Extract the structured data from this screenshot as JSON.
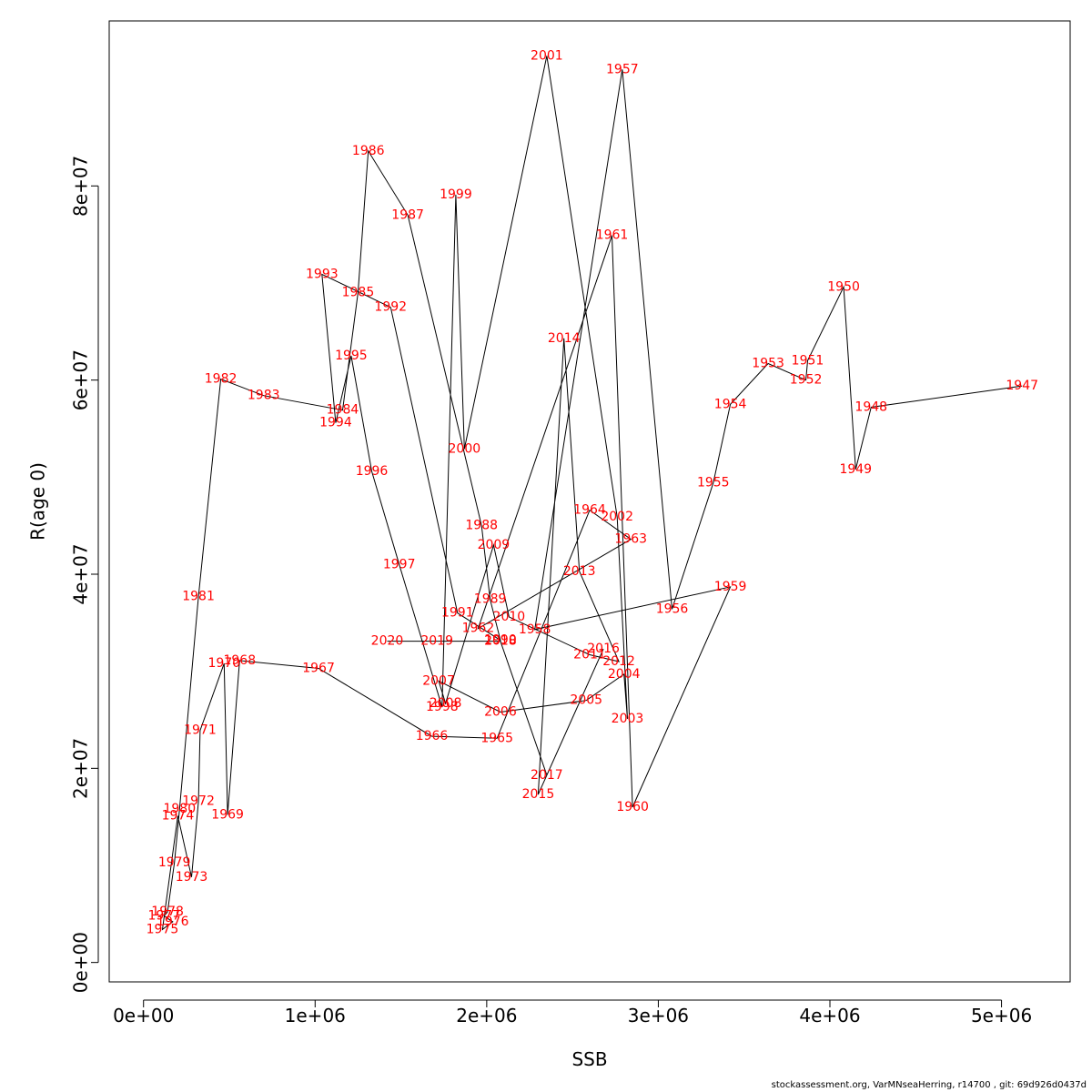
{
  "chart_data": {
    "type": "line",
    "xlabel": "SSB",
    "ylabel": "R(age 0)",
    "xlim": [
      -200000,
      5400000
    ],
    "ylim": [
      -2000000,
      97000000
    ],
    "x_ticks": [
      0,
      1000000,
      2000000,
      3000000,
      4000000,
      5000000
    ],
    "x_tick_labels": [
      "0e+00",
      "1e+06",
      "2e+06",
      "3e+06",
      "4e+06",
      "5e+06"
    ],
    "y_ticks": [
      0,
      20000000,
      40000000,
      60000000,
      80000000
    ],
    "y_tick_labels": [
      "0e+00",
      "2e+07",
      "4e+07",
      "6e+07",
      "8e+07"
    ],
    "line_color": "#000000",
    "label_color": "#ff0000",
    "points": [
      {
        "year": "1947",
        "ssb": 5120000,
        "r": 59400000
      },
      {
        "year": "1948",
        "ssb": 4240000,
        "r": 57200000
      },
      {
        "year": "1949",
        "ssb": 4150000,
        "r": 50800000
      },
      {
        "year": "1950",
        "ssb": 4080000,
        "r": 69600000
      },
      {
        "year": "1951",
        "ssb": 3870000,
        "r": 62000000
      },
      {
        "year": "1952",
        "ssb": 3860000,
        "r": 60000000
      },
      {
        "year": "1953",
        "ssb": 3640000,
        "r": 61700000
      },
      {
        "year": "1954",
        "ssb": 3420000,
        "r": 57500000
      },
      {
        "year": "1955",
        "ssb": 3320000,
        "r": 49400000
      },
      {
        "year": "1956",
        "ssb": 3080000,
        "r": 36400000
      },
      {
        "year": "1957",
        "ssb": 2790000,
        "r": 92000000
      },
      {
        "year": "1958",
        "ssb": 2280000,
        "r": 34300000
      },
      {
        "year": "1959",
        "ssb": 3420000,
        "r": 38700000
      },
      {
        "year": "1960",
        "ssb": 2850000,
        "r": 16000000
      },
      {
        "year": "1961",
        "ssb": 2730000,
        "r": 74900000
      },
      {
        "year": "1962",
        "ssb": 1950000,
        "r": 34400000
      },
      {
        "year": "1963",
        "ssb": 2840000,
        "r": 43600000
      },
      {
        "year": "1964",
        "ssb": 2600000,
        "r": 46600000
      },
      {
        "year": "1965",
        "ssb": 2060000,
        "r": 23100000
      },
      {
        "year": "1966",
        "ssb": 1680000,
        "r": 23300000
      },
      {
        "year": "1967",
        "ssb": 1020000,
        "r": 30300000
      },
      {
        "year": "1968",
        "ssb": 560000,
        "r": 31100000
      },
      {
        "year": "1969",
        "ssb": 490000,
        "r": 15200000
      },
      {
        "year": "1970",
        "ssb": 470000,
        "r": 30800000
      },
      {
        "year": "1971",
        "ssb": 330000,
        "r": 23900000
      },
      {
        "year": "1972",
        "ssb": 320000,
        "r": 16600000
      },
      {
        "year": "1973",
        "ssb": 280000,
        "r": 8800000
      },
      {
        "year": "1974",
        "ssb": 200000,
        "r": 15100000
      },
      {
        "year": "1975",
        "ssb": 110000,
        "r": 3400000
      },
      {
        "year": "1976",
        "ssb": 170000,
        "r": 4200000
      },
      {
        "year": "1977",
        "ssb": 120000,
        "r": 4800000
      },
      {
        "year": "1978",
        "ssb": 140000,
        "r": 5200000
      },
      {
        "year": "1979",
        "ssb": 180000,
        "r": 10300000
      },
      {
        "year": "1980",
        "ssb": 210000,
        "r": 15800000
      },
      {
        "year": "1981",
        "ssb": 320000,
        "r": 37700000
      },
      {
        "year": "1982",
        "ssb": 450000,
        "r": 60100000
      },
      {
        "year": "1983",
        "ssb": 700000,
        "r": 58400000
      },
      {
        "year": "1984",
        "ssb": 1160000,
        "r": 56900000
      },
      {
        "year": "1985",
        "ssb": 1250000,
        "r": 69000000
      },
      {
        "year": "1986",
        "ssb": 1310000,
        "r": 83600000
      },
      {
        "year": "1987",
        "ssb": 1540000,
        "r": 77000000
      },
      {
        "year": "1988",
        "ssb": 1970000,
        "r": 45000000
      },
      {
        "year": "1989",
        "ssb": 2020000,
        "r": 37400000
      },
      {
        "year": "1990",
        "ssb": 2080000,
        "r": 33200000
      },
      {
        "year": "1991",
        "ssb": 1830000,
        "r": 36000000
      },
      {
        "year": "1992",
        "ssb": 1440000,
        "r": 67500000
      },
      {
        "year": "1993",
        "ssb": 1040000,
        "r": 70900000
      },
      {
        "year": "1994",
        "ssb": 1120000,
        "r": 55600000
      },
      {
        "year": "1995",
        "ssb": 1210000,
        "r": 62500000
      },
      {
        "year": "1996",
        "ssb": 1330000,
        "r": 50600000
      },
      {
        "year": "1997",
        "ssb": 1490000,
        "r": 41000000
      },
      {
        "year": "1998",
        "ssb": 1740000,
        "r": 26300000
      },
      {
        "year": "1999",
        "ssb": 1820000,
        "r": 79100000
      },
      {
        "year": "2000",
        "ssb": 1870000,
        "r": 52900000
      },
      {
        "year": "2001",
        "ssb": 2350000,
        "r": 93400000
      },
      {
        "year": "2002",
        "ssb": 2760000,
        "r": 45900000
      },
      {
        "year": "2003",
        "ssb": 2820000,
        "r": 25100000
      },
      {
        "year": "2004",
        "ssb": 2800000,
        "r": 29700000
      },
      {
        "year": "2005",
        "ssb": 2580000,
        "r": 27000000
      },
      {
        "year": "2006",
        "ssb": 2080000,
        "r": 25800000
      },
      {
        "year": "2007",
        "ssb": 1720000,
        "r": 29000000
      },
      {
        "year": "2008",
        "ssb": 1760000,
        "r": 26700000
      },
      {
        "year": "2009",
        "ssb": 2040000,
        "r": 43000000
      },
      {
        "year": "2010",
        "ssb": 2130000,
        "r": 35600000
      },
      {
        "year": "2011",
        "ssb": 2600000,
        "r": 31700000
      },
      {
        "year": "2012",
        "ssb": 2770000,
        "r": 31000000
      },
      {
        "year": "2013",
        "ssb": 2540000,
        "r": 40300000
      },
      {
        "year": "2014",
        "ssb": 2450000,
        "r": 64300000
      },
      {
        "year": "2015",
        "ssb": 2300000,
        "r": 17300000
      },
      {
        "year": "2016",
        "ssb": 2680000,
        "r": 32300000
      },
      {
        "year": "2017",
        "ssb": 2350000,
        "r": 19300000
      },
      {
        "year": "2018",
        "ssb": 2080000,
        "r": 33100000
      },
      {
        "year": "2019",
        "ssb": 1710000,
        "r": 33100000
      },
      {
        "year": "2020",
        "ssb": 1420000,
        "r": 33100000
      }
    ]
  },
  "footer": "stockassessment.org, VarMNseaHerring, r14700 , git: 69d926d0437d"
}
